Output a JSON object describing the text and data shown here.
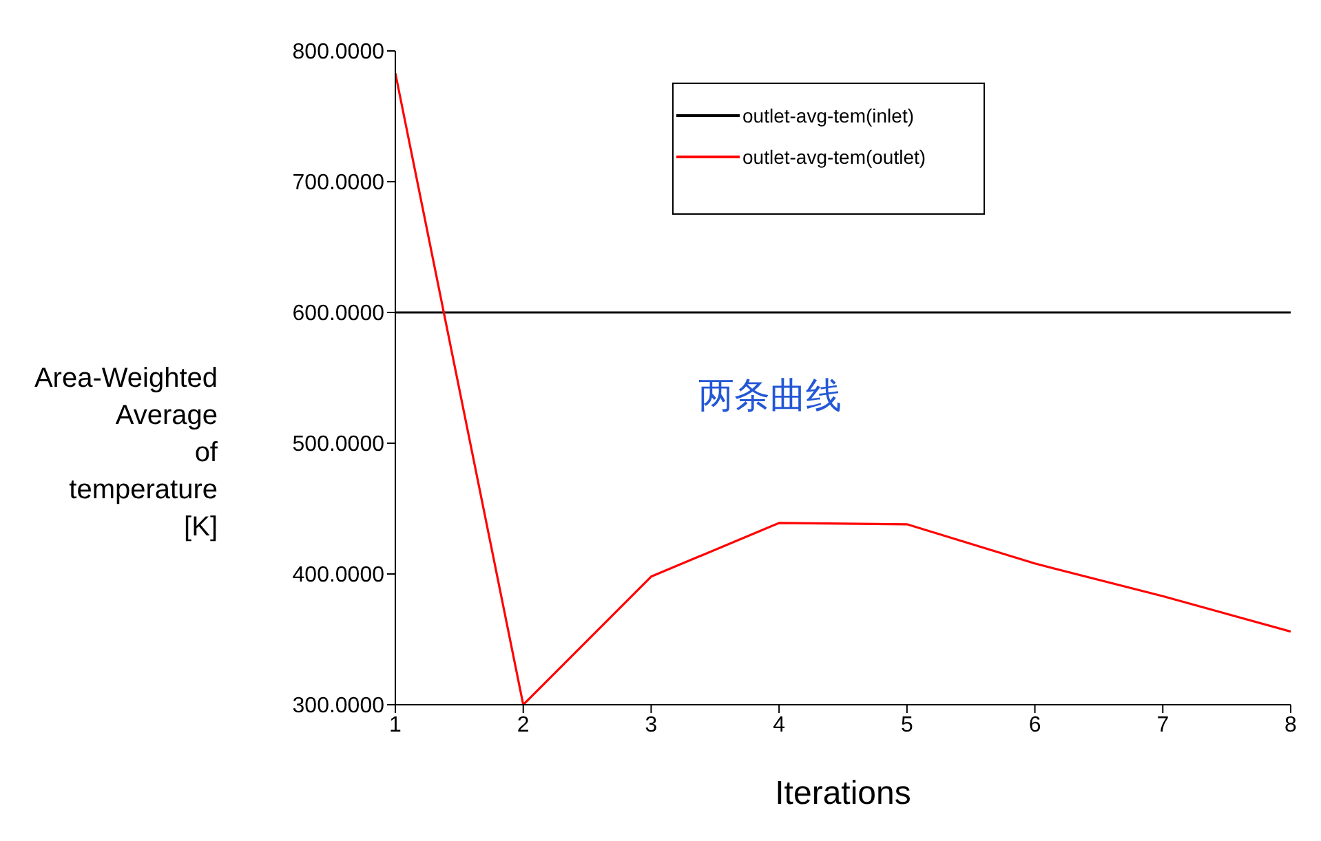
{
  "chart_data": {
    "type": "line",
    "xlabel": "Iterations",
    "ylabel": "Area-Weighted Average of temperature [K]",
    "x": [
      1,
      2,
      3,
      4,
      5,
      6,
      7,
      8
    ],
    "series": [
      {
        "name": "outlet-avg-tem(inlet)",
        "color": "#000000",
        "values": [
          600,
          600,
          600,
          600,
          600,
          600,
          600,
          600
        ]
      },
      {
        "name": "outlet-avg-tem(outlet)",
        "color": "#ff0000",
        "values": [
          783,
          300,
          398,
          439,
          438,
          408,
          383,
          356
        ]
      }
    ],
    "xlim": [
      1,
      8
    ],
    "xticks": [
      1,
      2,
      3,
      4,
      5,
      6,
      7,
      8
    ],
    "ylim": [
      300,
      800
    ],
    "yticks": [
      {
        "value": 300,
        "label": "300.0000"
      },
      {
        "value": 400,
        "label": "400.0000"
      },
      {
        "value": 500,
        "label": "500.0000"
      },
      {
        "value": 600,
        "label": "600.0000"
      },
      {
        "value": 700,
        "label": "700.0000"
      },
      {
        "value": 800,
        "label": "800.0000"
      }
    ],
    "grid": false,
    "legend": "top right",
    "marker": "none",
    "line_style": "solid",
    "annotations": [
      "两条曲线"
    ]
  }
}
